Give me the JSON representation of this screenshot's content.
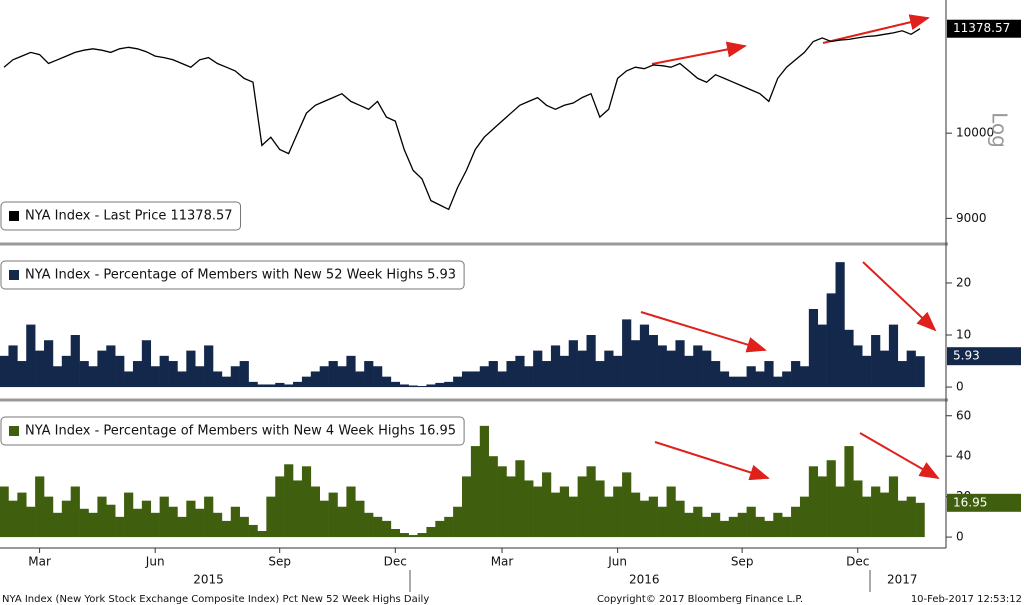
{
  "chart_data": [
    {
      "type": "line",
      "name": "NYA Index - Last Price 11378.57",
      "color": "#000000",
      "ylog": true,
      "y_axis_label": "Log",
      "ylim": [
        8730,
        11790
      ],
      "yticks": [
        9000,
        10000
      ],
      "values": [
        10850,
        10950,
        11000,
        11050,
        11020,
        10900,
        10950,
        11000,
        11050,
        11080,
        11100,
        11080,
        11050,
        11100,
        11120,
        11100,
        11060,
        11000,
        10980,
        10950,
        10900,
        10850,
        10950,
        10980,
        10900,
        10850,
        10800,
        10700,
        10650,
        9850,
        9950,
        9800,
        9750,
        10000,
        10250,
        10350,
        10400,
        10450,
        10500,
        10400,
        10350,
        10300,
        10400,
        10200,
        10150,
        9800,
        9550,
        9450,
        9200,
        9150,
        9100,
        9350,
        9550,
        9800,
        9950,
        10050,
        10150,
        10250,
        10350,
        10400,
        10450,
        10350,
        10300,
        10350,
        10380,
        10450,
        10500,
        10200,
        10300,
        10700,
        10800,
        10850,
        10830,
        10880,
        10870,
        10850,
        10900,
        10800,
        10700,
        10650,
        10750,
        10700,
        10650,
        10600,
        10550,
        10500,
        10400,
        10700,
        10850,
        10950,
        11050,
        11200,
        11250,
        11200,
        11220,
        11230,
        11250,
        11270,
        11280,
        11300,
        11320,
        11350,
        11300,
        11378.57
      ]
    },
    {
      "type": "bar",
      "name": "NYA Index - Percentage of Members with New 52 Week Highs 5.93",
      "color": "#14284b",
      "ylim": [
        -2.1,
        27.1
      ],
      "yticks": [
        0,
        10,
        20
      ],
      "values": [
        6,
        8,
        5,
        12,
        7,
        9,
        4,
        6,
        10,
        5,
        4,
        7,
        8,
        6,
        3,
        5,
        9,
        4,
        6,
        5,
        3,
        7,
        4,
        8,
        3,
        2,
        4,
        5,
        1,
        0.5,
        0.5,
        0.8,
        0.5,
        1,
        2,
        3,
        4,
        5,
        4,
        6,
        3,
        5,
        4,
        2,
        1,
        0.5,
        0.3,
        0.2,
        0.5,
        0.8,
        1,
        2,
        3,
        3,
        4,
        5,
        3,
        5,
        6,
        4,
        7,
        5,
        8,
        6,
        9,
        7,
        10,
        5,
        7,
        6,
        13,
        9,
        12,
        10,
        8,
        7,
        9,
        6,
        8,
        7,
        5,
        3,
        2,
        2,
        4,
        3,
        5,
        2,
        3,
        5,
        4,
        15,
        12,
        18,
        24,
        11,
        8,
        6,
        10,
        7,
        12,
        5,
        7,
        5.93
      ]
    },
    {
      "type": "bar",
      "name": "NYA Index - Percentage of Members with New 4 Week Highs 16.95",
      "color": "#3f5f0f",
      "ylim": [
        -5.4,
        66.8
      ],
      "yticks": [
        0,
        20,
        40,
        60
      ],
      "values": [
        25,
        18,
        22,
        15,
        30,
        20,
        12,
        18,
        25,
        14,
        12,
        20,
        16,
        10,
        22,
        14,
        18,
        12,
        20,
        15,
        10,
        18,
        14,
        20,
        12,
        8,
        15,
        10,
        6,
        3,
        20,
        30,
        36,
        28,
        35,
        25,
        18,
        22,
        15,
        25,
        18,
        12,
        10,
        8,
        4,
        2,
        1,
        2,
        5,
        8,
        10,
        15,
        30,
        45,
        55,
        40,
        35,
        30,
        38,
        28,
        25,
        32,
        22,
        25,
        20,
        30,
        35,
        28,
        20,
        25,
        32,
        22,
        18,
        20,
        15,
        25,
        18,
        12,
        15,
        10,
        12,
        8,
        10,
        12,
        15,
        10,
        8,
        12,
        10,
        15,
        20,
        35,
        30,
        38,
        25,
        45,
        28,
        20,
        25,
        22,
        30,
        18,
        20,
        16.95
      ],
      "categories": [
        null,
        null,
        null,
        null,
        "Mar",
        null,
        null,
        null,
        null,
        null,
        null,
        null,
        null,
        null,
        null,
        null,
        null,
        "Jun",
        null,
        null,
        null,
        null,
        null,
        null,
        null,
        null,
        null,
        null,
        null,
        null,
        null,
        "Sep",
        null,
        null,
        null,
        null,
        null,
        null,
        null,
        null,
        null,
        null,
        null,
        null,
        "Dec",
        null,
        null,
        null,
        null,
        null,
        null,
        null,
        null,
        null,
        null,
        null,
        "Mar",
        null,
        null,
        null,
        null,
        null,
        null,
        null,
        null,
        null,
        null,
        null,
        null,
        "Jun",
        null,
        null,
        null,
        null,
        null,
        null,
        null,
        null,
        null,
        null,
        null,
        null,
        null,
        "Sep",
        null,
        null,
        null,
        null,
        null,
        null,
        null,
        null,
        null,
        null,
        null,
        null,
        "Dec",
        null,
        null,
        null,
        null,
        null,
        null,
        null
      ],
      "year_categories": [
        null,
        null,
        null,
        null,
        null,
        null,
        null,
        null,
        null,
        null,
        null,
        null,
        null,
        null,
        null,
        null,
        null,
        null,
        null,
        null,
        null,
        null,
        null,
        "2015",
        null,
        null,
        null,
        null,
        null,
        null,
        null,
        null,
        null,
        null,
        null,
        null,
        null,
        null,
        null,
        null,
        null,
        null,
        null,
        null,
        null,
        null,
        null,
        null,
        null,
        null,
        null,
        null,
        null,
        null,
        null,
        null,
        null,
        null,
        null,
        null,
        null,
        null,
        null,
        null,
        null,
        null,
        null,
        null,
        null,
        null,
        null,
        null,
        "2016",
        null,
        null,
        null,
        null,
        null,
        null,
        null,
        null,
        null,
        null,
        null,
        null,
        null,
        null,
        null,
        null,
        null,
        null,
        null,
        null,
        null,
        null,
        null,
        null,
        null,
        null,
        null,
        null,
        "2017",
        null
      ]
    }
  ],
  "footer": {
    "left": "NYA Index (New York Stock Exchange Composite Index) Pct New 52 Week Highs  Daily",
    "center": "Copyright© 2017 Bloomberg Finance L.P.",
    "right": "10-Feb-2017 12:53:12"
  }
}
